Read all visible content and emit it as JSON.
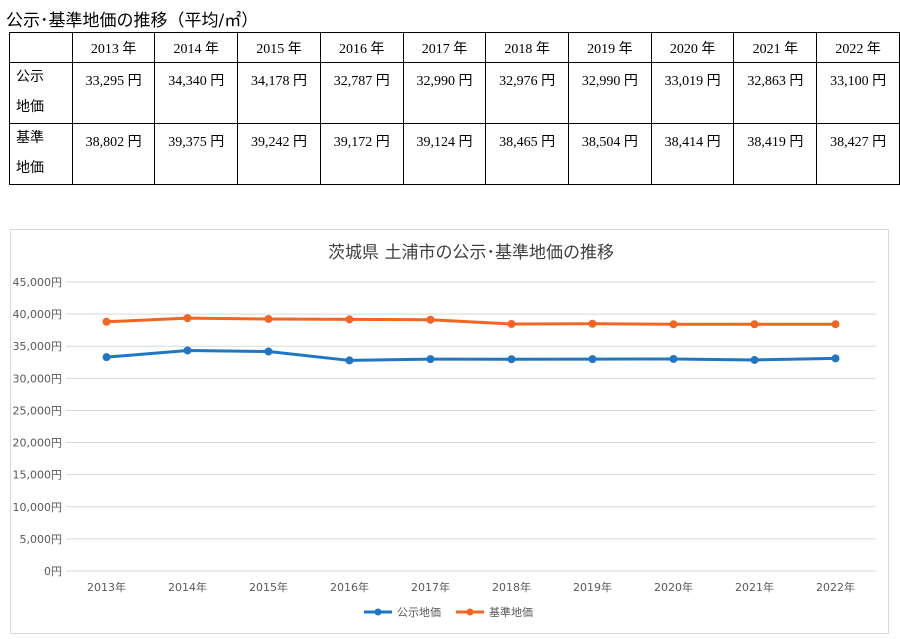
{
  "heading": "公示･基準地価の推移（平均/㎡）",
  "table": {
    "corner": "",
    "years": [
      "2013 年",
      "2014 年",
      "2015 年",
      "2016 年",
      "2017 年",
      "2018 年",
      "2019 年",
      "2020 年",
      "2021 年",
      "2022 年"
    ],
    "rows": [
      {
        "label_line1": "公示",
        "label_line2": "地価",
        "cells": [
          "33,295 円",
          "34,340 円",
          "34,178 円",
          "32,787 円",
          "32,990 円",
          "32,976 円",
          "32,990 円",
          "33,019 円",
          "32,863 円",
          "33,100 円"
        ]
      },
      {
        "label_line1": "基準",
        "label_line2": "地価",
        "cells": [
          "38,802 円",
          "39,375 円",
          "39,242 円",
          "39,172 円",
          "39,124 円",
          "38,465 円",
          "38,504 円",
          "38,414 円",
          "38,419 円",
          "38,427 円"
        ]
      }
    ]
  },
  "chart_data": {
    "type": "line",
    "title": "茨城県 土浦市の公示･基準地価の推移",
    "xlabel": "",
    "ylabel": "",
    "categories": [
      "2013年",
      "2014年",
      "2015年",
      "2016年",
      "2017年",
      "2018年",
      "2019年",
      "2020年",
      "2021年",
      "2022年"
    ],
    "ylim": [
      0,
      45000
    ],
    "yticks": [
      0,
      5000,
      10000,
      15000,
      20000,
      25000,
      30000,
      35000,
      40000,
      45000
    ],
    "ytick_labels": [
      "0円",
      "5,000円",
      "10,000円",
      "15,000円",
      "20,000円",
      "25,000円",
      "30,000円",
      "35,000円",
      "40,000円",
      "45,000円"
    ],
    "grid": true,
    "legend_position": "bottom",
    "series": [
      {
        "name": "公示地価",
        "color": "#1f77c4",
        "values": [
          33295,
          34340,
          34178,
          32787,
          32990,
          32976,
          32990,
          33019,
          32863,
          33100
        ]
      },
      {
        "name": "基準地価",
        "color": "#f26522",
        "values": [
          38802,
          39375,
          39242,
          39172,
          39124,
          38465,
          38504,
          38414,
          38419,
          38427
        ]
      }
    ]
  }
}
